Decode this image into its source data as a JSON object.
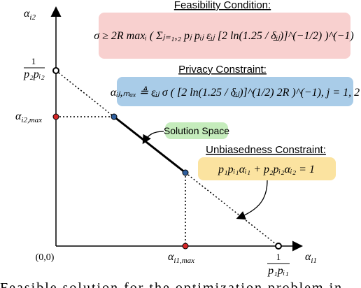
{
  "titles": {
    "feasibility": "Feasibility Condition:",
    "privacy": "Privacy Constraint:",
    "unbiasedness": "Unbiasedness Constraint:"
  },
  "formulas": {
    "feasibility": "σ ≥ 2R maxᵢ ( Σⱼ₌₁,₂ pⱼ pᵢⱼ ε̲ᵢⱼ [2 ln(1.25 / δ̲ᵢⱼ)]^(−1/2) )^(−1)",
    "privacy": "αᵢⱼ,ₘₐₓ ≜ ε̲ᵢⱼ σ ( [2 ln(1.25 / δ̲ᵢⱼ)]^(1/2) 2R )^(−1), j = 1, 2",
    "unbiasedness": "p₁pᵢ₁αᵢ₁ + p₂pᵢ₂αᵢ₂ = 1"
  },
  "solution_space": "Solution Space",
  "axes": {
    "y": {
      "base": "α",
      "sub": "i2"
    },
    "x": {
      "base": "α",
      "sub": "i1"
    },
    "origin": "(0,0)"
  },
  "points": {
    "y_intercept": {
      "num": "1",
      "den": "p₂pᵢ₂"
    },
    "x_intercept": {
      "num": "1",
      "den": "p₁pᵢ₁"
    },
    "y_max": {
      "base": "α",
      "sub": "i2,max"
    },
    "x_max": {
      "base": "α",
      "sub": "i1,max"
    }
  },
  "caption": "Feasible solution for the optimization problem in"
}
